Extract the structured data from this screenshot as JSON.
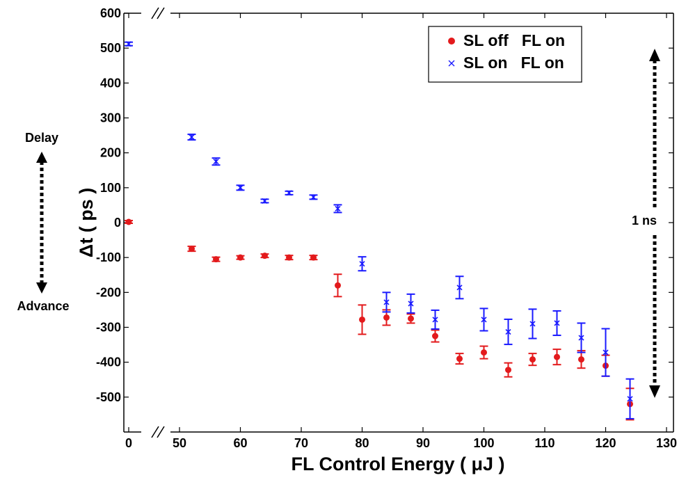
{
  "chart_data": {
    "type": "scatter",
    "xlabel": "FL Control Energy ( μJ )",
    "ylabel": "Δt ( ps )",
    "xlim": [
      0,
      130
    ],
    "ylim": [
      -600,
      600
    ],
    "x_axis_break": true,
    "x_ticks": [
      "0",
      "50",
      "60",
      "70",
      "80",
      "90",
      "100",
      "110",
      "120",
      "130"
    ],
    "y_ticks": [
      "600",
      "500",
      "400",
      "300",
      "200",
      "100",
      "0",
      "-100",
      "-200",
      "-300",
      "-400",
      "-500"
    ],
    "grid": false,
    "legend_position": "top-right",
    "series": [
      {
        "name": "SL off   FL on",
        "marker": "filled-circle",
        "color": "#e31a1c",
        "points": [
          {
            "x": 0,
            "y": 2,
            "err": 4
          },
          {
            "x": 52,
            "y": -75,
            "err": 7
          },
          {
            "x": 56,
            "y": -105,
            "err": 6
          },
          {
            "x": 60,
            "y": -100,
            "err": 5
          },
          {
            "x": 64,
            "y": -95,
            "err": 5
          },
          {
            "x": 68,
            "y": -100,
            "err": 6
          },
          {
            "x": 72,
            "y": -100,
            "err": 6
          },
          {
            "x": 76,
            "y": -180,
            "err": 32
          },
          {
            "x": 80,
            "y": -278,
            "err": 42
          },
          {
            "x": 84,
            "y": -272,
            "err": 22
          },
          {
            "x": 88,
            "y": -275,
            "err": 13
          },
          {
            "x": 92,
            "y": -325,
            "err": 17
          },
          {
            "x": 96,
            "y": -390,
            "err": 15
          },
          {
            "x": 100,
            "y": -372,
            "err": 18
          },
          {
            "x": 104,
            "y": -422,
            "err": 20
          },
          {
            "x": 108,
            "y": -392,
            "err": 17
          },
          {
            "x": 112,
            "y": -385,
            "err": 22
          },
          {
            "x": 116,
            "y": -392,
            "err": 25
          },
          {
            "x": 120,
            "y": -410,
            "err": 30
          },
          {
            "x": 124,
            "y": -520,
            "err": 45
          }
        ]
      },
      {
        "name": "SL on   FL on",
        "marker": "x",
        "color": "#1a1aff",
        "points": [
          {
            "x": 0,
            "y": 512,
            "err": 5
          },
          {
            "x": 52,
            "y": 245,
            "err": 8
          },
          {
            "x": 56,
            "y": 175,
            "err": 10
          },
          {
            "x": 60,
            "y": 100,
            "err": 7
          },
          {
            "x": 64,
            "y": 62,
            "err": 5
          },
          {
            "x": 68,
            "y": 85,
            "err": 5
          },
          {
            "x": 72,
            "y": 73,
            "err": 6
          },
          {
            "x": 76,
            "y": 40,
            "err": 11
          },
          {
            "x": 80,
            "y": -118,
            "err": 20
          },
          {
            "x": 84,
            "y": -228,
            "err": 28
          },
          {
            "x": 88,
            "y": -232,
            "err": 27
          },
          {
            "x": 92,
            "y": -278,
            "err": 27
          },
          {
            "x": 96,
            "y": -186,
            "err": 32
          },
          {
            "x": 100,
            "y": -278,
            "err": 32
          },
          {
            "x": 104,
            "y": -313,
            "err": 36
          },
          {
            "x": 108,
            "y": -290,
            "err": 42
          },
          {
            "x": 112,
            "y": -288,
            "err": 35
          },
          {
            "x": 116,
            "y": -330,
            "err": 42
          },
          {
            "x": 120,
            "y": -372,
            "err": 68
          },
          {
            "x": 124,
            "y": -505,
            "err": 57
          }
        ]
      }
    ],
    "annotations": {
      "delay": "Delay",
      "advance": "Advance",
      "scale_bar": "1 ns"
    }
  }
}
